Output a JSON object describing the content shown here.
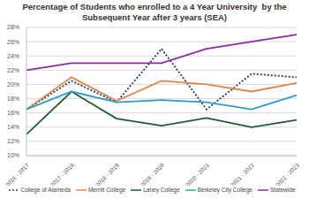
{
  "chart_data": {
    "type": "line",
    "title": "Percentage of Students who enrolled to a 4 Year University  by the Subsequent Year after 3 years (SEA)",
    "categories": [
      "2016 - 2017",
      "2017 - 2018",
      "2018 - 2019",
      "2019 - 2020",
      "2020 - 2021",
      "2021 - 2022",
      "2022 - 2023"
    ],
    "series": [
      {
        "name": "College of Alameda",
        "color": "#1f3864",
        "line_style": "dotted",
        "values": [
          16.5,
          20.5,
          17.5,
          25,
          16.5,
          21.5,
          21
        ]
      },
      {
        "name": "Merritt College",
        "color": "#e2844a",
        "line_style": "solid",
        "values": [
          16.5,
          21,
          17.7,
          20.5,
          20,
          19,
          20.2
        ]
      },
      {
        "name": "Laney College",
        "color": "#1e5b2f",
        "line_style": "solid",
        "values": [
          13,
          19,
          15.2,
          14.2,
          15.3,
          14,
          15
        ]
      },
      {
        "name": "Berkeley City College",
        "color": "#2e9cc0",
        "line_style": "solid",
        "values": [
          16.5,
          19,
          17.5,
          17.8,
          17.5,
          16.5,
          18.5
        ]
      },
      {
        "name": "Statewide",
        "color": "#8b2c9e",
        "line_style": "solid",
        "values": [
          22,
          23,
          23,
          23,
          25,
          26,
          27
        ]
      }
    ],
    "ylim": [
      10,
      28
    ],
    "yticks": [
      {
        "value": 10,
        "label": "10%"
      },
      {
        "value": 12,
        "label": "12%"
      },
      {
        "value": 14,
        "label": "14%"
      },
      {
        "value": 16,
        "label": "16%"
      },
      {
        "value": 18,
        "label": "18%"
      },
      {
        "value": 20,
        "label": "20%"
      },
      {
        "value": 22,
        "label": "22%"
      },
      {
        "value": 24,
        "label": "24%"
      },
      {
        "value": 26,
        "label": "26%"
      },
      {
        "value": 28,
        "label": "28%"
      }
    ],
    "grid": true,
    "legend": "bottom"
  }
}
